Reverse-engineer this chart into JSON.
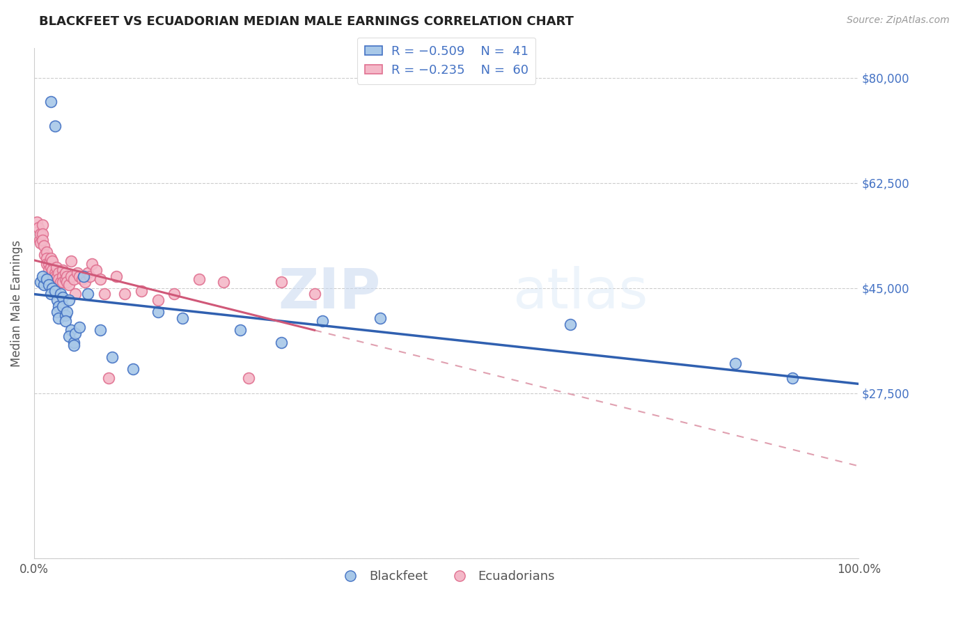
{
  "title": "BLACKFEET VS ECUADORIAN MEDIAN MALE EARNINGS CORRELATION CHART",
  "source": "Source: ZipAtlas.com",
  "ylabel": "Median Male Earnings",
  "ytick_vals": [
    0,
    27500,
    45000,
    62500,
    80000
  ],
  "ytick_labels": [
    "",
    "$27,500",
    "$45,000",
    "$62,500",
    "$80,000"
  ],
  "blackfeet_fill": "#a8c8e8",
  "blackfeet_edge": "#4472c4",
  "ecuadorian_fill": "#f4b8c8",
  "ecuadorian_edge": "#e07090",
  "blue_line_color": "#3060b0",
  "pink_line_color": "#d05878",
  "pink_dash_color": "#e0a0b0",
  "watermark_zip": "ZIP",
  "watermark_atlas": "atlas",
  "blackfeet_x": [
    0.008,
    0.012,
    0.02,
    0.025,
    0.01,
    0.015,
    0.018,
    0.022,
    0.02,
    0.025,
    0.028,
    0.03,
    0.028,
    0.032,
    0.035,
    0.03,
    0.035,
    0.038,
    0.04,
    0.038,
    0.042,
    0.045,
    0.042,
    0.048,
    0.05,
    0.048,
    0.055,
    0.06,
    0.065,
    0.08,
    0.095,
    0.12,
    0.15,
    0.18,
    0.25,
    0.3,
    0.35,
    0.42,
    0.65,
    0.85,
    0.92
  ],
  "blackfeet_y": [
    46000,
    45500,
    76000,
    72000,
    47000,
    46500,
    45500,
    45000,
    44000,
    44500,
    43000,
    42000,
    41000,
    44000,
    43500,
    40000,
    42000,
    40500,
    41000,
    39500,
    43000,
    38000,
    37000,
    36000,
    37500,
    35500,
    38500,
    47000,
    44000,
    38000,
    33500,
    31500,
    41000,
    40000,
    38000,
    36000,
    39500,
    40000,
    39000,
    32500,
    30000
  ],
  "ecuadorian_x": [
    0.003,
    0.005,
    0.007,
    0.008,
    0.008,
    0.01,
    0.01,
    0.01,
    0.012,
    0.013,
    0.015,
    0.015,
    0.015,
    0.018,
    0.018,
    0.02,
    0.02,
    0.022,
    0.022,
    0.025,
    0.025,
    0.027,
    0.028,
    0.03,
    0.03,
    0.032,
    0.035,
    0.035,
    0.035,
    0.038,
    0.038,
    0.04,
    0.04,
    0.042,
    0.045,
    0.045,
    0.048,
    0.05,
    0.052,
    0.055,
    0.058,
    0.06,
    0.062,
    0.065,
    0.068,
    0.07,
    0.075,
    0.08,
    0.085,
    0.09,
    0.1,
    0.11,
    0.13,
    0.15,
    0.17,
    0.2,
    0.23,
    0.26,
    0.3,
    0.34
  ],
  "ecuadorian_y": [
    56000,
    55000,
    53000,
    54000,
    52500,
    55500,
    54000,
    53000,
    52000,
    50500,
    51000,
    50000,
    49000,
    49000,
    48000,
    50000,
    48500,
    49500,
    48000,
    47500,
    47000,
    48500,
    47000,
    47500,
    46500,
    46000,
    48000,
    47000,
    46000,
    47500,
    46500,
    47000,
    46000,
    45500,
    49500,
    47000,
    46500,
    44000,
    47500,
    47000,
    46500,
    47000,
    46000,
    47500,
    47000,
    49000,
    48000,
    46500,
    44000,
    30000,
    47000,
    44000,
    44500,
    43000,
    44000,
    46500,
    46000,
    30000,
    46000,
    44000
  ]
}
